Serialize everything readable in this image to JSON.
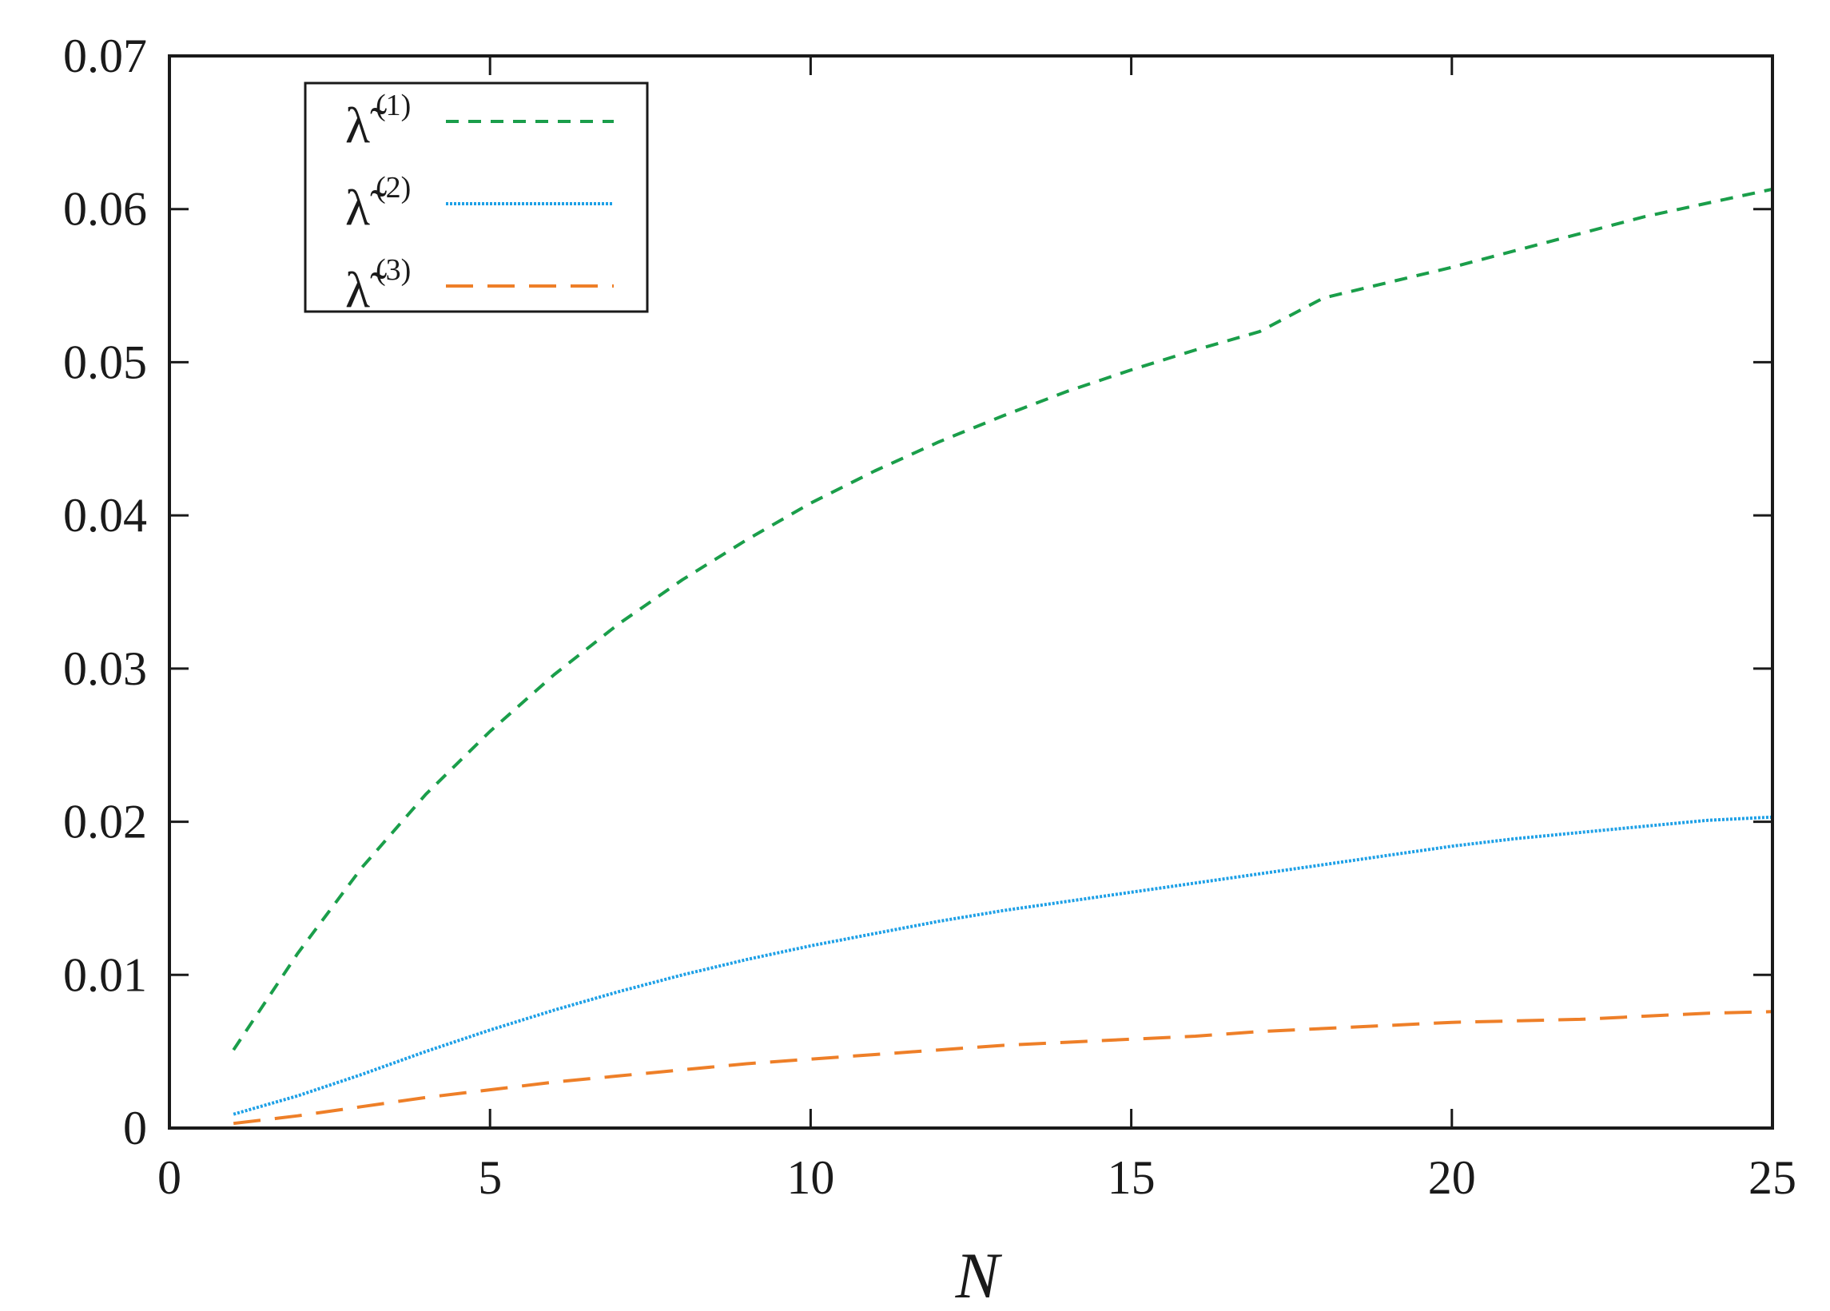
{
  "chart_data": {
    "type": "line",
    "title": "",
    "xlabel": "N",
    "ylabel": "",
    "xlim": [
      0,
      25
    ],
    "ylim": [
      0,
      0.07
    ],
    "x_ticks": [
      "0",
      "5",
      "10",
      "15",
      "20",
      "25"
    ],
    "y_ticks": [
      "0",
      "0.01",
      "0.02",
      "0.03",
      "0.04",
      "0.05",
      "0.06",
      "0.07"
    ],
    "grid": false,
    "legend_position": "top-left",
    "x": [
      1,
      2,
      3,
      4,
      5,
      6,
      7,
      8,
      9,
      10,
      11,
      12,
      13,
      14,
      15,
      16,
      17,
      18,
      19,
      20,
      21,
      22,
      23,
      24,
      25
    ],
    "series": [
      {
        "name": "λ̃(1)",
        "label_base": "λ̃",
        "label_sup": "(1)",
        "color": "#1a9e4a",
        "style": "short-dash",
        "values": [
          0.0051,
          0.0114,
          0.017,
          0.0218,
          0.0259,
          0.0296,
          0.0329,
          0.0358,
          0.0384,
          0.0408,
          0.0429,
          0.0448,
          0.0465,
          0.0481,
          0.0495,
          0.0508,
          0.052,
          0.0542,
          0.0552,
          0.0562,
          0.0573,
          0.0584,
          0.0595,
          0.0604,
          0.0613
        ]
      },
      {
        "name": "λ̃(2)",
        "label_base": "λ̃",
        "label_sup": "(2)",
        "color": "#1ea0e6",
        "style": "dotted",
        "values": [
          0.0009,
          0.0021,
          0.0035,
          0.005,
          0.0064,
          0.0077,
          0.0089,
          0.01,
          0.011,
          0.0119,
          0.0127,
          0.0135,
          0.0142,
          0.0148,
          0.0154,
          0.016,
          0.0166,
          0.0172,
          0.0178,
          0.0184,
          0.0189,
          0.0193,
          0.0197,
          0.0201,
          0.0203
        ]
      },
      {
        "name": "λ̃(3)",
        "label_base": "λ̃",
        "label_sup": "(3)",
        "color": "#ee7f28",
        "style": "long-dash",
        "values": [
          0.0003,
          0.0008,
          0.0014,
          0.002,
          0.0025,
          0.003,
          0.0034,
          0.0038,
          0.0042,
          0.0045,
          0.0048,
          0.0051,
          0.0054,
          0.0056,
          0.0058,
          0.006,
          0.0063,
          0.0065,
          0.0067,
          0.0069,
          0.007,
          0.0071,
          0.0073,
          0.0075,
          0.0076
        ]
      }
    ]
  }
}
